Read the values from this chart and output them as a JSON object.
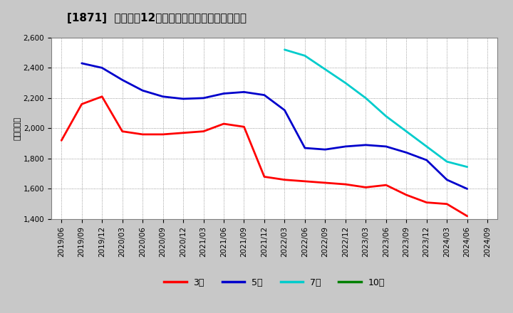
{
  "title": "[1871]  経常利益12か月移動合計の標準偏差の推移",
  "ylabel": "（百万円）",
  "outer_background": "#c8c8c8",
  "plot_background": "#ffffff",
  "ylim": [
    1400,
    2600
  ],
  "yticks": [
    1400,
    1600,
    1800,
    2000,
    2200,
    2400,
    2600
  ],
  "series": {
    "3年": {
      "color": "#ff0000",
      "data": [
        [
          "2019/06",
          1920
        ],
        [
          "2019/09",
          2160
        ],
        [
          "2019/12",
          2210
        ],
        [
          "2020/03",
          1980
        ],
        [
          "2020/06",
          1960
        ],
        [
          "2020/09",
          1960
        ],
        [
          "2020/12",
          1970
        ],
        [
          "2021/03",
          1980
        ],
        [
          "2021/06",
          2030
        ],
        [
          "2021/09",
          2010
        ],
        [
          "2021/12",
          1680
        ],
        [
          "2022/03",
          1660
        ],
        [
          "2022/06",
          1650
        ],
        [
          "2022/09",
          1640
        ],
        [
          "2022/12",
          1630
        ],
        [
          "2023/03",
          1610
        ],
        [
          "2023/06",
          1625
        ],
        [
          "2023/09",
          1560
        ],
        [
          "2023/12",
          1510
        ],
        [
          "2024/03",
          1500
        ],
        [
          "2024/06",
          1420
        ]
      ]
    },
    "5年": {
      "color": "#0000cc",
      "data": [
        [
          "2019/09",
          2430
        ],
        [
          "2019/12",
          2400
        ],
        [
          "2020/03",
          2320
        ],
        [
          "2020/06",
          2250
        ],
        [
          "2020/09",
          2210
        ],
        [
          "2020/12",
          2195
        ],
        [
          "2021/03",
          2200
        ],
        [
          "2021/06",
          2230
        ],
        [
          "2021/09",
          2240
        ],
        [
          "2021/12",
          2220
        ],
        [
          "2022/03",
          2120
        ],
        [
          "2022/06",
          1870
        ],
        [
          "2022/09",
          1860
        ],
        [
          "2022/12",
          1880
        ],
        [
          "2023/03",
          1890
        ],
        [
          "2023/06",
          1880
        ],
        [
          "2023/09",
          1840
        ],
        [
          "2023/12",
          1790
        ],
        [
          "2024/03",
          1660
        ],
        [
          "2024/06",
          1600
        ]
      ]
    },
    "7年": {
      "color": "#00cccc",
      "data": [
        [
          "2022/03",
          2520
        ],
        [
          "2022/06",
          2480
        ],
        [
          "2022/09",
          2390
        ],
        [
          "2022/12",
          2300
        ],
        [
          "2023/03",
          2200
        ],
        [
          "2023/06",
          2080
        ],
        [
          "2023/09",
          1980
        ],
        [
          "2023/12",
          1880
        ],
        [
          "2024/03",
          1780
        ],
        [
          "2024/06",
          1745
        ]
      ]
    },
    "10年": {
      "color": "#008000",
      "data": []
    }
  },
  "legend_labels": [
    "3年",
    "5年",
    "7年",
    "10年"
  ],
  "legend_colors": [
    "#ff0000",
    "#0000cc",
    "#00cccc",
    "#008000"
  ],
  "xtick_labels": [
    "2019/06",
    "2019/09",
    "2019/12",
    "2020/03",
    "2020/06",
    "2020/09",
    "2020/12",
    "2021/03",
    "2021/06",
    "2021/09",
    "2021/12",
    "2022/03",
    "2022/06",
    "2022/09",
    "2022/12",
    "2023/03",
    "2023/06",
    "2023/09",
    "2023/12",
    "2024/03",
    "2024/06",
    "2024/09"
  ],
  "title_fontsize": 11,
  "tick_fontsize": 7.5,
  "ylabel_fontsize": 8,
  "legend_fontsize": 9,
  "linewidth": 2.0
}
